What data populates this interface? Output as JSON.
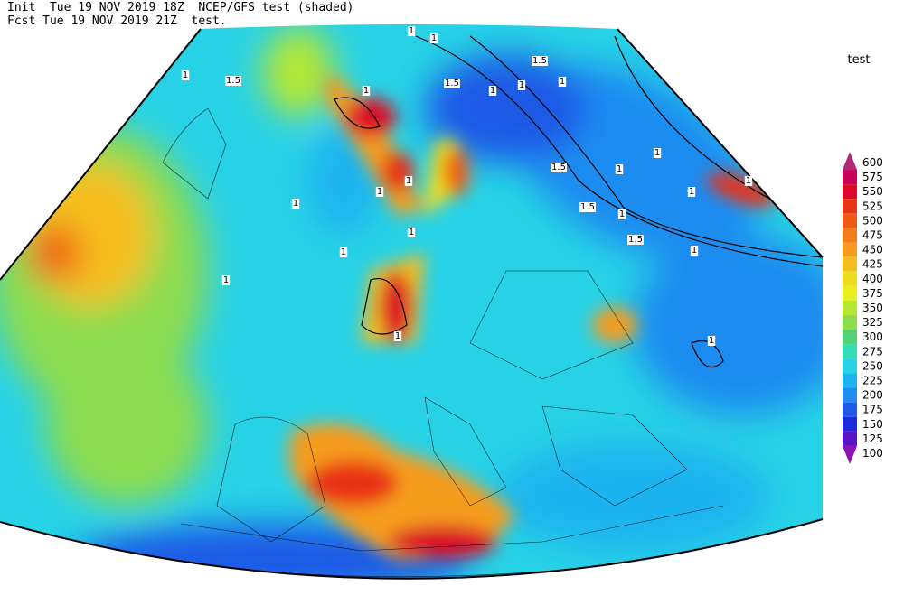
{
  "header": {
    "line1": "Init  Tue 19 NOV 2019 18Z  NCEP/GFS test (shaded)",
    "line2": "Fcst Tue 19 NOV 2019 21Z  test."
  },
  "legend": {
    "title": "test",
    "levels": [
      {
        "label": "600",
        "color": "#b4287a"
      },
      {
        "label": "575",
        "color": "#c8005a"
      },
      {
        "label": "550",
        "color": "#dc0a28"
      },
      {
        "label": "525",
        "color": "#e83214"
      },
      {
        "label": "500",
        "color": "#f05a14"
      },
      {
        "label": "475",
        "color": "#f57d19"
      },
      {
        "label": "450",
        "color": "#f59b1e"
      },
      {
        "label": "425",
        "color": "#f5be1e"
      },
      {
        "label": "400",
        "color": "#f0dc1e"
      },
      {
        "label": "375",
        "color": "#e6f01e"
      },
      {
        "label": "350",
        "color": "#b4e632"
      },
      {
        "label": "325",
        "color": "#8cdc50"
      },
      {
        "label": "300",
        "color": "#50d278"
      },
      {
        "label": "275",
        "color": "#32dcb4"
      },
      {
        "label": "250",
        "color": "#28d2e6"
      },
      {
        "label": "225",
        "color": "#1eb4f0"
      },
      {
        "label": "200",
        "color": "#1e8cf0"
      },
      {
        "label": "175",
        "color": "#1e5ae6"
      },
      {
        "label": "150",
        "color": "#1e28dc"
      },
      {
        "label": "125",
        "color": "#5a14c8"
      },
      {
        "label": "100",
        "color": "#8c14b4"
      }
    ]
  },
  "contour_labels": [
    "1",
    "1",
    "1.5",
    "1",
    "1.5",
    "1",
    "1",
    "1.5",
    "1",
    "1",
    "1.5",
    "1",
    "1",
    "1.5",
    "1",
    "1.5",
    "1",
    "1",
    "1",
    "1",
    "1",
    "1",
    "1",
    "1",
    "1",
    "1",
    "1"
  ]
}
